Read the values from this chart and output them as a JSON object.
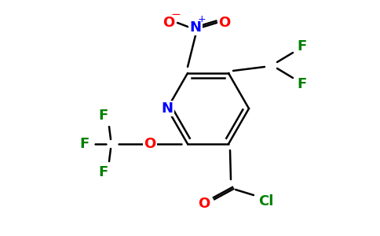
{
  "bg_color": "#ffffff",
  "atom_colors": {
    "C": "#000000",
    "N": "#0000ff",
    "O": "#ff0000",
    "F": "#008000",
    "Cl": "#008000"
  },
  "figsize": [
    4.84,
    3.0
  ],
  "dpi": 100
}
